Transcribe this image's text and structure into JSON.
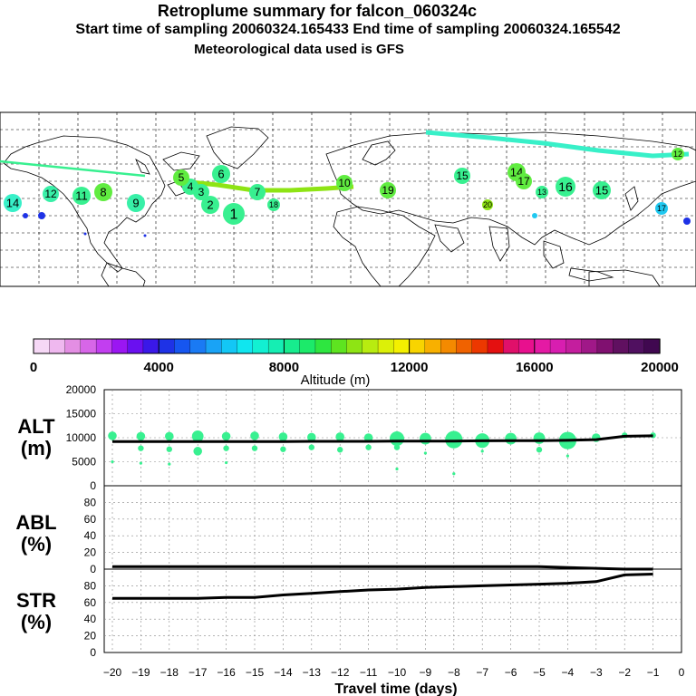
{
  "header": {
    "title": "Retroplume summary for falcon_060324c",
    "line2": "Start time of sampling 20060324.165433     End time of sampling 20060324.165542",
    "line3": "Meteorological data used is GFS"
  },
  "colorbar": {
    "ticks": [
      "0",
      "4000",
      "8000",
      "12000",
      "16000",
      "20000"
    ],
    "label": "Altitude (m)",
    "colors": [
      "#f6d8f6",
      "#efb8ef",
      "#e38ee3",
      "#d766e8",
      "#c23ef0",
      "#9b16f2",
      "#6a10f0",
      "#3a18e8",
      "#1e32e6",
      "#1656f0",
      "#1a7af4",
      "#19a3f6",
      "#13c7f5",
      "#10e6ef",
      "#12f0d2",
      "#15eeb3",
      "#17ec8e",
      "#1cea6a",
      "#2ee640",
      "#5ee420",
      "#8ee414",
      "#b8ec10",
      "#dcf008",
      "#f4f000",
      "#f8d400",
      "#f8b000",
      "#f48a00",
      "#f06200",
      "#ec3800",
      "#e41010",
      "#e0106a",
      "#e8108e",
      "#e41aa4",
      "#d81eb0",
      "#c41e9e",
      "#a01888",
      "#801070",
      "#601060",
      "#501060",
      "#400850"
    ]
  },
  "map": {
    "labels": [
      {
        "n": "1",
        "c": "#38f090"
      },
      {
        "n": "2",
        "c": "#38f090"
      },
      {
        "n": "3",
        "c": "#38f090"
      },
      {
        "n": "4",
        "c": "#38f090"
      },
      {
        "n": "5",
        "c": "#60ec40"
      },
      {
        "n": "6",
        "c": "#38f090"
      },
      {
        "n": "7",
        "c": "#38f090"
      },
      {
        "n": "8",
        "c": "#60ec40"
      },
      {
        "n": "9",
        "c": "#38f0a8"
      },
      {
        "n": "10",
        "c": "#60ec40"
      },
      {
        "n": "11",
        "c": "#38f090"
      },
      {
        "n": "12",
        "c": "#38f0a8"
      },
      {
        "n": "13",
        "c": "#38f090"
      },
      {
        "n": "14",
        "c": "#60ec40"
      },
      {
        "n": "15",
        "c": "#38f090"
      },
      {
        "n": "16",
        "c": "#38f090"
      },
      {
        "n": "17",
        "c": "#60ec40"
      },
      {
        "n": "18",
        "c": "#38f090"
      },
      {
        "n": "19",
        "c": "#60ec40"
      },
      {
        "n": "20",
        "c": "#8ee414"
      },
      {
        "n": "14",
        "c": "#38f0c8"
      },
      {
        "n": "17",
        "c": "#20c8f0"
      },
      {
        "n": "12",
        "c": "#60ec40"
      },
      {
        "n": "15",
        "c": "#38f090"
      }
    ]
  },
  "chart_data": [
    {
      "type": "line",
      "panel": "ALT",
      "ylabel": "ALT\n(m)",
      "ylim": [
        0,
        20000
      ],
      "yticks": [
        "0",
        "5000",
        "10000",
        "15000",
        "20000"
      ],
      "x": [
        -20,
        -19,
        -18,
        -17,
        -16,
        -15,
        -14,
        -13,
        -12,
        -11,
        -10,
        -9,
        -8,
        -7,
        -6,
        -5,
        -4,
        -3,
        -2,
        -1
      ],
      "series": [
        {
          "name": "median altitude",
          "values": [
            9200,
            9200,
            9200,
            9200,
            9200,
            9200,
            9200,
            9250,
            9250,
            9250,
            9300,
            9300,
            9300,
            9350,
            9400,
            9400,
            9450,
            9600,
            10300,
            10400
          ]
        }
      ],
      "points": [
        {
          "x": -20,
          "y": 10400,
          "s": 3
        },
        {
          "x": -20,
          "y": 5000,
          "s": 1
        },
        {
          "x": -19,
          "y": 10300,
          "s": 3
        },
        {
          "x": -19,
          "y": 7800,
          "s": 2
        },
        {
          "x": -19,
          "y": 4700,
          "s": 1
        },
        {
          "x": -18,
          "y": 10300,
          "s": 3
        },
        {
          "x": -18,
          "y": 7600,
          "s": 2
        },
        {
          "x": -18,
          "y": 4500,
          "s": 1
        },
        {
          "x": -17,
          "y": 10300,
          "s": 4
        },
        {
          "x": -17,
          "y": 7200,
          "s": 3
        },
        {
          "x": -16,
          "y": 10300,
          "s": 3
        },
        {
          "x": -16,
          "y": 7800,
          "s": 2
        },
        {
          "x": -16,
          "y": 4800,
          "s": 1
        },
        {
          "x": -15,
          "y": 10400,
          "s": 3
        },
        {
          "x": -15,
          "y": 7800,
          "s": 2
        },
        {
          "x": -14,
          "y": 10200,
          "s": 3
        },
        {
          "x": -14,
          "y": 7600,
          "s": 2
        },
        {
          "x": -13,
          "y": 10100,
          "s": 3
        },
        {
          "x": -13,
          "y": 8000,
          "s": 2
        },
        {
          "x": -12,
          "y": 10200,
          "s": 3
        },
        {
          "x": -12,
          "y": 7500,
          "s": 2
        },
        {
          "x": -11,
          "y": 10000,
          "s": 3
        },
        {
          "x": -11,
          "y": 8000,
          "s": 2
        },
        {
          "x": -10,
          "y": 9800,
          "s": 5
        },
        {
          "x": -10,
          "y": 8000,
          "s": 2
        },
        {
          "x": -10,
          "y": 3500,
          "s": 1
        },
        {
          "x": -9,
          "y": 9800,
          "s": 4
        },
        {
          "x": -9,
          "y": 6800,
          "s": 1
        },
        {
          "x": -8,
          "y": 9600,
          "s": 6
        },
        {
          "x": -8,
          "y": 2500,
          "s": 1
        },
        {
          "x": -7,
          "y": 9400,
          "s": 5
        },
        {
          "x": -7,
          "y": 7200,
          "s": 1
        },
        {
          "x": -6,
          "y": 9800,
          "s": 4
        },
        {
          "x": -5,
          "y": 9900,
          "s": 4
        },
        {
          "x": -5,
          "y": 7500,
          "s": 2
        },
        {
          "x": -4,
          "y": 9400,
          "s": 6
        },
        {
          "x": -4,
          "y": 6200,
          "s": 1
        },
        {
          "x": -3,
          "y": 10000,
          "s": 3
        },
        {
          "x": -2,
          "y": 10500,
          "s": 2
        },
        {
          "x": -1,
          "y": 10500,
          "s": 2
        }
      ]
    },
    {
      "type": "line",
      "panel": "ABL",
      "ylabel": "ABL\n(%)",
      "ylim": [
        0,
        100
      ],
      "yticks": [
        "0",
        "20",
        "40",
        "60",
        "80"
      ],
      "x": [
        -20,
        -19,
        -18,
        -17,
        -16,
        -15,
        -14,
        -13,
        -12,
        -11,
        -10,
        -9,
        -8,
        -7,
        -6,
        -5,
        -4,
        -3,
        -2,
        -1
      ],
      "series": [
        {
          "name": "ABL fraction",
          "values": [
            3,
            3,
            3,
            3,
            3,
            3,
            3,
            3,
            3,
            3,
            3,
            3,
            3,
            3,
            3,
            3,
            2,
            1,
            0,
            0
          ]
        }
      ]
    },
    {
      "type": "line",
      "panel": "STR",
      "ylabel": "STR\n(%)",
      "ylim": [
        0,
        100
      ],
      "yticks": [
        "0",
        "20",
        "40",
        "60",
        "80"
      ],
      "x": [
        -20,
        -19,
        -18,
        -17,
        -16,
        -15,
        -14,
        -13,
        -12,
        -11,
        -10,
        -9,
        -8,
        -7,
        -6,
        -5,
        -4,
        -3,
        -2,
        -1
      ],
      "series": [
        {
          "name": "stratospheric fraction",
          "values": [
            65,
            65,
            65,
            65,
            66,
            66,
            69,
            71,
            73,
            75,
            76,
            78,
            79,
            80,
            81,
            82,
            83,
            85,
            93,
            94
          ]
        }
      ]
    }
  ],
  "xaxis": {
    "ticks": [
      "−20",
      "−19",
      "−18",
      "−17",
      "−16",
      "−15",
      "−14",
      "−13",
      "−12",
      "−11",
      "−10",
      "−9",
      "−8",
      "−7",
      "−6",
      "−5",
      "−4",
      "−3",
      "−2",
      "−1",
      "0"
    ],
    "label": "Travel time (days)"
  }
}
